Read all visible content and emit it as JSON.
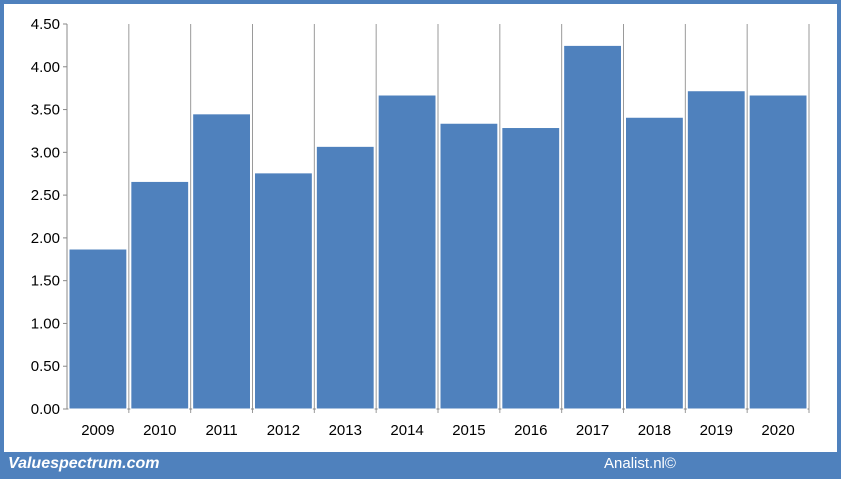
{
  "chart_data": {
    "type": "bar",
    "categories": [
      "2009",
      "2010",
      "2011",
      "2012",
      "2013",
      "2014",
      "2015",
      "2016",
      "2017",
      "2018",
      "2019",
      "2020"
    ],
    "values": [
      1.87,
      2.66,
      3.45,
      2.76,
      3.07,
      3.67,
      3.34,
      3.29,
      4.25,
      3.41,
      3.72,
      3.67
    ],
    "title": "",
    "xlabel": "",
    "ylabel": "",
    "ylim": [
      0,
      4.5
    ],
    "yticks": [
      "0.00",
      "0.50",
      "1.00",
      "1.50",
      "2.00",
      "2.50",
      "3.00",
      "3.50",
      "4.00",
      "4.50"
    ],
    "grid": "vertical",
    "bar_color": "#4f81bd",
    "grid_color": "#9a9a9a"
  },
  "footer": {
    "left": "Valuespectrum.com",
    "right": "Analist.nl©"
  },
  "colors": {
    "frame": "#4f81bd",
    "background": "#ffffff"
  }
}
